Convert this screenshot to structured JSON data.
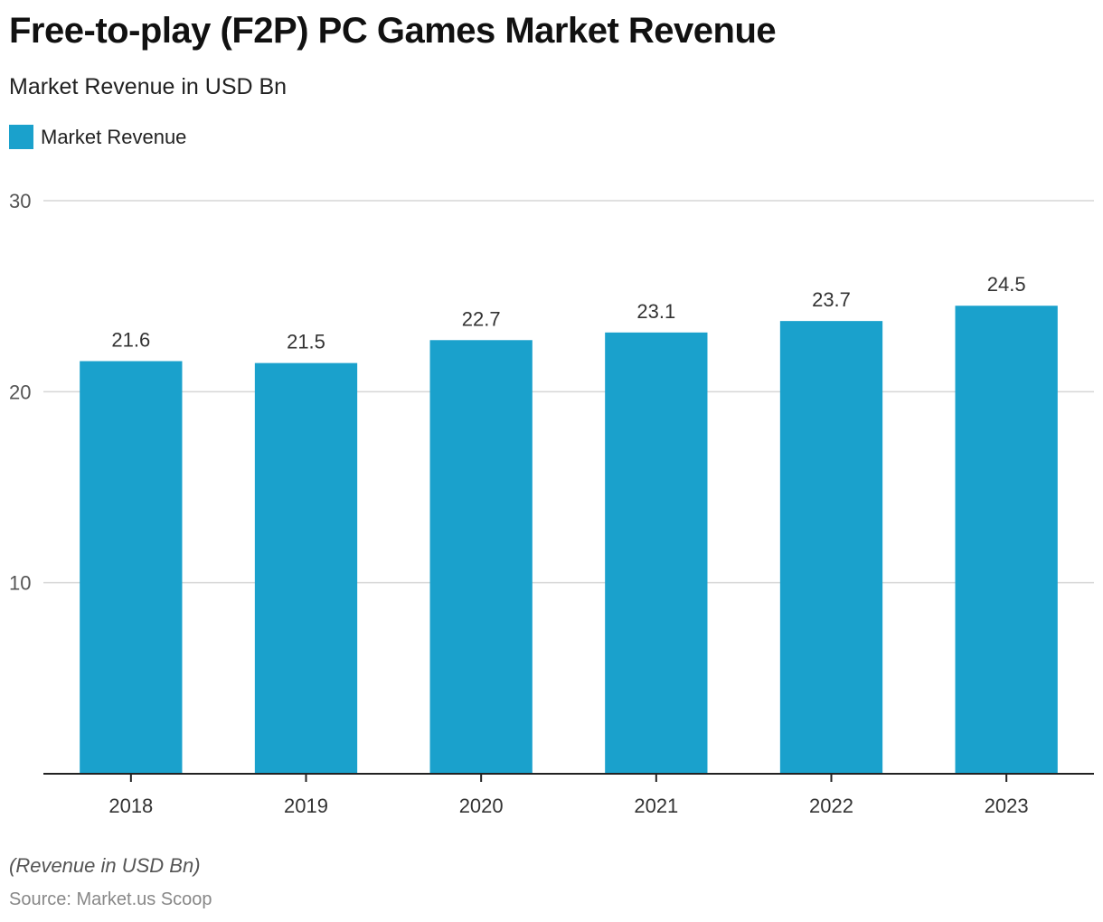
{
  "header": {
    "title": "Free-to-play (F2P) PC Games Market Revenue",
    "subtitle": "Market Revenue in USD Bn"
  },
  "legend": {
    "items": [
      {
        "label": "Market Revenue",
        "color": "#1aa1cc"
      }
    ]
  },
  "footer": {
    "note": "(Revenue in USD Bn)",
    "source": "Source: Market.us Scoop"
  },
  "chart_data": {
    "type": "bar",
    "title": "Free-to-play (F2P) PC Games Market Revenue",
    "subtitle": "Market Revenue in USD Bn",
    "xlabel": "",
    "ylabel": "",
    "categories": [
      "2018",
      "2019",
      "2020",
      "2021",
      "2022",
      "2023"
    ],
    "series": [
      {
        "name": "Market Revenue",
        "color": "#1aa1cc",
        "values": [
          21.6,
          21.5,
          22.7,
          23.1,
          23.7,
          24.5
        ]
      }
    ],
    "data_labels": [
      "21.6",
      "21.5",
      "22.7",
      "23.1",
      "23.7",
      "24.5"
    ],
    "ylim": [
      0,
      30
    ],
    "yticks": [
      10,
      20,
      30
    ],
    "ytick_labels": [
      "10",
      "20",
      "30"
    ],
    "grid": true,
    "legend_position": "top-left"
  }
}
